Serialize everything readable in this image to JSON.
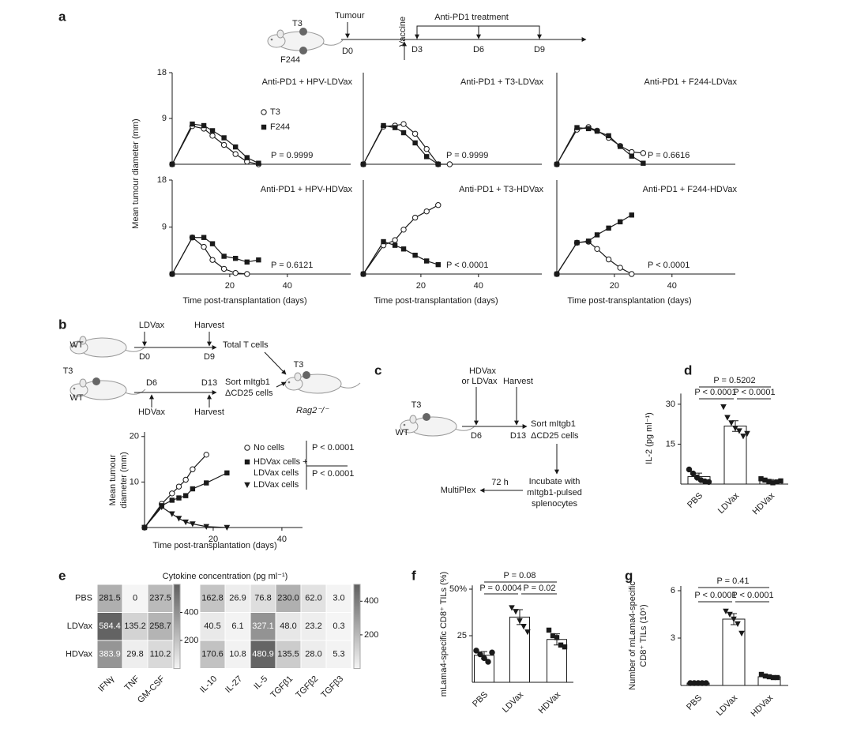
{
  "panel_labels": [
    "a",
    "b",
    "c",
    "d",
    "e",
    "f",
    "g"
  ],
  "diagram_a": {
    "mouse_tumours": [
      "T3",
      "F244"
    ],
    "tumour": "Tumour",
    "vaccine": "Vaccine",
    "treatment": "Anti-PD1 treatment",
    "days": [
      "D0",
      "D3",
      "D6",
      "D9"
    ]
  },
  "diagram_b": {
    "donors": [
      {
        "mouse": "WT",
        "treatment": "LDVax",
        "harvest": "Harvest",
        "days": [
          "D0",
          "D9"
        ],
        "product": "Total T cells"
      },
      {
        "mouse": "WT",
        "tumour": "T3",
        "treatment": "HDVax",
        "harvest": "Harvest",
        "days": [
          "D6",
          "D13"
        ],
        "product": [
          "Sort mItgb1",
          "ΔCD25 cells"
        ]
      }
    ],
    "recipient": {
      "tumour": "T3",
      "mouse": "Rag2⁻/⁻"
    }
  },
  "diagram_c": {
    "mouse": "WT",
    "tumour": "T3",
    "vaccine": [
      "HDVax",
      "or LDVax"
    ],
    "harvest": "Harvest",
    "days": [
      "D6",
      "D13"
    ],
    "sort": [
      "Sort mItgb1",
      "ΔCD25 cells"
    ],
    "incubate": [
      "Incubate with",
      "mItgb1-pulsed",
      "splenocytes"
    ],
    "time": "72 h",
    "readout": "MultiPlex"
  },
  "chart_data": [
    {
      "type": "line",
      "title": "Anti-PD1 + HPV-LDVax",
      "annotation": "P = 0.9999",
      "ylabel": "Mean tumour diameter (mm)",
      "x": [
        0,
        7,
        11,
        14,
        18,
        22,
        26,
        30
      ],
      "xlim": [
        0,
        62
      ],
      "ylim": [
        0,
        18
      ],
      "yticks": [
        9,
        18
      ],
      "series": [
        {
          "name": "T3",
          "color": "#1a1a1a",
          "marker": "circle-open",
          "values": [
            0,
            7.5,
            7.0,
            5.6,
            3.8,
            2.0,
            0.5,
            0
          ]
        },
        {
          "name": "F244",
          "color": "#1a1a1a",
          "marker": "square",
          "values": [
            0,
            7.9,
            7.6,
            6.6,
            5.2,
            3.4,
            1.3,
            0.2
          ]
        }
      ]
    },
    {
      "type": "line",
      "title": "Anti-PD1 + T3-LDVax",
      "annotation": "P = 0.9999",
      "x": [
        0,
        7,
        11,
        14,
        18,
        22,
        26,
        30
      ],
      "xlim": [
        0,
        62
      ],
      "ylim": [
        0,
        18
      ],
      "series": [
        {
          "color": "#1a1a1a",
          "marker": "circle-open",
          "values": [
            0,
            7.4,
            7.6,
            7.9,
            6.0,
            3.0,
            0,
            0
          ]
        },
        {
          "color": "#1a1a1a",
          "marker": "square",
          "values": [
            0,
            7.6,
            7.2,
            6.2,
            4.2,
            1.5,
            0,
            null
          ]
        }
      ]
    },
    {
      "type": "line",
      "title": "Anti-PD1 + F244-LDVax",
      "annotation": "P = 0.6616",
      "x": [
        0,
        7,
        11,
        14,
        18,
        22,
        26,
        30
      ],
      "xlim": [
        0,
        62
      ],
      "ylim": [
        0,
        18
      ],
      "series": [
        {
          "color": "#1a1a1a",
          "marker": "circle-open",
          "values": [
            0,
            6.8,
            7.3,
            6.6,
            5.2,
            3.6,
            2.4,
            2.2
          ]
        },
        {
          "color": "#1a1a1a",
          "marker": "square",
          "values": [
            0,
            7.2,
            7.0,
            6.5,
            5.6,
            3.5,
            1.6,
            0.2
          ]
        }
      ]
    },
    {
      "type": "line",
      "title": "Anti-PD1 + HPV-HDVax",
      "annotation": "P = 0.6121",
      "xlabel": "Time post-transplantation (days)",
      "x": [
        0,
        7,
        11,
        14,
        18,
        22,
        26,
        30
      ],
      "xlim": [
        0,
        62
      ],
      "ylim": [
        0,
        18
      ],
      "yticks": [
        9,
        18
      ],
      "xticks": [
        20,
        40
      ],
      "series": [
        {
          "color": "#1a1a1a",
          "marker": "circle-open",
          "values": [
            0,
            7.0,
            5.2,
            2.7,
            1.0,
            0.2,
            0,
            null
          ]
        },
        {
          "color": "#1a1a1a",
          "marker": "square",
          "values": [
            0,
            7.0,
            7.0,
            5.8,
            3.4,
            3.0,
            2.3,
            2.7
          ]
        }
      ]
    },
    {
      "type": "line",
      "title": "Anti-PD1 + T3-HDVax",
      "annotation": "P < 0.0001",
      "xlabel": "Time post-transplantation (days)",
      "x": [
        0,
        7,
        11,
        14,
        18,
        22,
        26,
        30
      ],
      "xlim": [
        0,
        62
      ],
      "ylim": [
        0,
        18
      ],
      "xticks": [
        20,
        40
      ],
      "series": [
        {
          "color": "#1a1a1a",
          "marker": "circle-open",
          "values": [
            0,
            5.5,
            6.5,
            8.5,
            10.8,
            12.0,
            13.2,
            null
          ]
        },
        {
          "color": "#1a1a1a",
          "marker": "square",
          "values": [
            0,
            6.2,
            5.5,
            4.8,
            3.6,
            2.5,
            1.8,
            null
          ]
        }
      ]
    },
    {
      "type": "line",
      "title": "Anti-PD1 + F244-HDVax",
      "annotation": "P < 0.0001",
      "xlabel": "Time post-transplantation (days)",
      "x": [
        0,
        7,
        11,
        14,
        18,
        22,
        26,
        30
      ],
      "xlim": [
        0,
        62
      ],
      "ylim": [
        0,
        18
      ],
      "xticks": [
        20,
        40
      ],
      "series": [
        {
          "color": "#1a1a1a",
          "marker": "circle-open",
          "values": [
            0,
            6.0,
            6.2,
            4.8,
            2.8,
            1.2,
            0,
            null
          ]
        },
        {
          "color": "#1a1a1a",
          "marker": "square",
          "values": [
            0,
            6.0,
            6.3,
            7.5,
            8.8,
            10.0,
            11.3,
            null
          ]
        }
      ]
    },
    {
      "type": "line",
      "ylabel": "Mean tumour diameter (mm)",
      "xlabel": "Time post-transplantation (days)",
      "x": [
        0,
        5,
        8,
        10,
        12,
        14,
        18,
        24
      ],
      "xlim": [
        0,
        46
      ],
      "ylim": [
        0,
        21
      ],
      "yticks": [
        10,
        20
      ],
      "xticks": [
        20,
        40
      ],
      "comparisons": [
        "P < 0.0001",
        "P < 0.0001"
      ],
      "series": [
        {
          "name": "No cells",
          "color": "#1a1a1a",
          "marker": "circle-open",
          "values": [
            0,
            5.2,
            7.5,
            9.0,
            10.5,
            12.8,
            16.0,
            null
          ]
        },
        {
          "name": "HDVax cells + LDVax cells",
          "color": "#1a1a1a",
          "marker": "square",
          "values": [
            0,
            4.8,
            6.0,
            6.5,
            7.0,
            8.5,
            9.8,
            12.0
          ]
        },
        {
          "name": "LDVax cells",
          "color": "#1a1a1a",
          "marker": "triangle-down",
          "values": [
            0,
            4.5,
            3.0,
            2.0,
            1.2,
            0.8,
            0.2,
            0
          ]
        }
      ]
    },
    {
      "type": "bar",
      "ylabel": "IL-2 (pg ml⁻¹)",
      "categories": [
        "PBS",
        "LDVax",
        "HDVax"
      ],
      "values": [
        2.8,
        21.8,
        1.2
      ],
      "errors": [
        1.3,
        2.0,
        0.5
      ],
      "ylim": [
        0,
        34
      ],
      "yticks": [
        15,
        30
      ],
      "markers": [
        "circle",
        "triangle-down",
        "square"
      ],
      "points": [
        [
          5.5,
          4.0,
          2.5,
          1.5,
          1.0,
          0.8
        ],
        [
          29,
          25,
          23,
          21,
          20,
          18,
          19
        ],
        [
          2.0,
          1.5,
          1.0,
          0.5,
          0.8,
          1.2
        ]
      ],
      "significance": [
        "P = 0.5202",
        "P < 0.0001",
        "P < 0.0001"
      ]
    },
    {
      "type": "heatmap",
      "title": "Cytokine concentration (pg ml⁻¹)",
      "rows": [
        "PBS",
        "LDVax",
        "HDVax"
      ],
      "columns": [
        "IFNγ",
        "TNF",
        "GM-CSF"
      ],
      "values": [
        [
          281.5,
          0,
          237.5
        ],
        [
          584.4,
          135.2,
          258.7
        ],
        [
          383.9,
          29.8,
          110.2
        ]
      ],
      "value_labels": [
        [
          "281.5",
          "0",
          "237.5"
        ],
        [
          "584.4",
          "135.2",
          "258.7"
        ],
        [
          "383.9",
          "29.8",
          "110.2"
        ]
      ],
      "clim": [
        0,
        600
      ],
      "cticks": [
        200,
        400
      ]
    },
    {
      "type": "heatmap",
      "columns": [
        "IL-10",
        "IL-27",
        "IL-5",
        "TGFβ1",
        "TGFβ2",
        "TGFβ3"
      ],
      "values": [
        [
          162.8,
          26.9,
          76.8,
          230.0,
          62.0,
          3.0
        ],
        [
          40.5,
          6.1,
          327.1,
          48.0,
          23.2,
          0.3
        ],
        [
          170.6,
          10.8,
          480.9,
          135.5,
          28.0,
          5.3
        ]
      ],
      "value_labels": [
        [
          "162.8",
          "26.9",
          "76.8",
          "230.0",
          "62.0",
          "3.0"
        ],
        [
          "40.5",
          "6.1",
          "327.1",
          "48.0",
          "23.2",
          "0.3"
        ],
        [
          "170.6",
          "10.8",
          "480.9",
          "135.5",
          "28.0",
          "5.3"
        ]
      ],
      "clim": [
        0,
        500
      ],
      "cticks": [
        200,
        400
      ]
    },
    {
      "type": "bar",
      "ylabel": "mLama4-specific CD8⁺ TILs (%)",
      "categories": [
        "PBS",
        "LDVax",
        "HDVax"
      ],
      "values": [
        14.5,
        35,
        23
      ],
      "errors": [
        2,
        4,
        3
      ],
      "ylim": [
        0,
        52
      ],
      "yticks": [
        25,
        {
          "value": 50,
          "label": "50%"
        }
      ],
      "markers": [
        "circle",
        "triangle-down",
        "square"
      ],
      "points": [
        [
          17,
          15,
          13,
          11,
          16
        ],
        [
          40,
          38,
          33,
          30,
          27
        ],
        [
          28,
          25,
          24,
          20,
          19
        ]
      ],
      "significance": [
        "P = 0.08",
        "P = 0.0004",
        "P = 0.02"
      ]
    },
    {
      "type": "bar",
      "ylabel": "Number of mLama4-specific CD8⁺ TILs (10⁵)",
      "categories": [
        "PBS",
        "LDVax",
        "HDVax"
      ],
      "values": [
        0.15,
        4.2,
        0.55
      ],
      "errors": [
        0.03,
        0.35,
        0.05
      ],
      "ylim": [
        0,
        6.3
      ],
      "yticks": [
        3,
        6
      ],
      "markers": [
        "circle",
        "triangle-down",
        "square"
      ],
      "points": [
        [
          0.15,
          0.15,
          0.15,
          0.15,
          0.15
        ],
        [
          4.7,
          4.5,
          4.2,
          3.9,
          3.3
        ],
        [
          0.7,
          0.6,
          0.55,
          0.5,
          0.5
        ]
      ],
      "significance": [
        "P = 0.41",
        "P < 0.0001",
        "P < 0.0001"
      ]
    }
  ]
}
